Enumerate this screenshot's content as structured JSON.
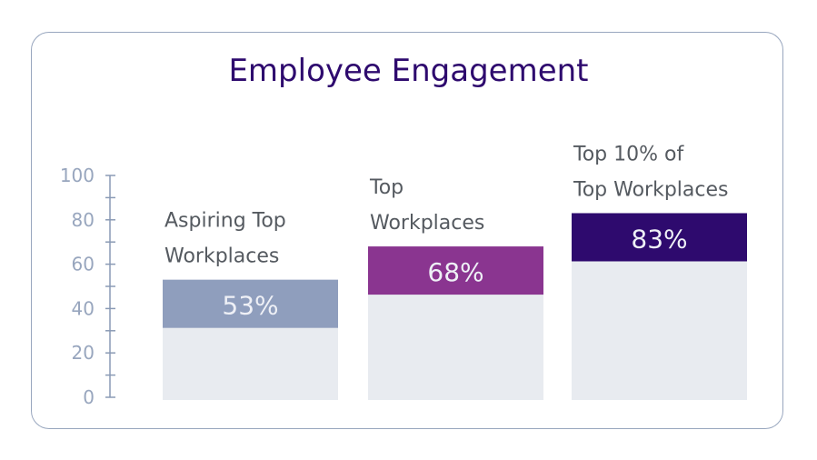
{
  "chart_data": {
    "type": "bar",
    "title": "Employee Engagement",
    "categories": [
      [
        "Aspiring Top",
        "Workplaces"
      ],
      [
        "Top",
        "Workplaces"
      ],
      [
        "Top 10% of",
        "Top Workplaces"
      ]
    ],
    "values": [
      53,
      68,
      83
    ],
    "value_labels": [
      "53%",
      "68%",
      "83%"
    ],
    "colors": [
      "#8f9ebd",
      "#8a3590",
      "#2e0a6e"
    ],
    "background_color": "#e8ebf0",
    "ylim": [
      0,
      100
    ],
    "yticks": [
      0,
      20,
      40,
      60,
      80,
      100
    ],
    "ytick_labels": [
      "0",
      "20",
      "40",
      "60",
      "80",
      "100"
    ],
    "xlabel": "",
    "ylabel": "",
    "grid": false
  }
}
